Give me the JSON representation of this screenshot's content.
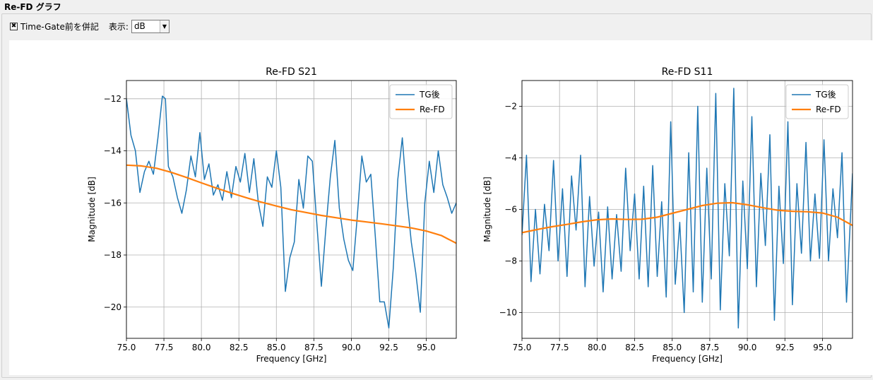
{
  "group": {
    "title": "Re-FD グラフ"
  },
  "toolbar": {
    "checkbox_checked": true,
    "checkbox_label": "Time-Gate前を併記",
    "display_label": "表示:",
    "display_value": "dB"
  },
  "colors": {
    "series_tg": "#1f77b4",
    "series_refd": "#ff7f0e",
    "grid": "#b0b0b0"
  },
  "chart_data": [
    {
      "type": "line",
      "title": "Re-FD S21",
      "xlabel": "Frequency [GHz]",
      "ylabel": "Magnitude [dB]",
      "xlim": [
        75.0,
        97.0
      ],
      "ylim": [
        -21.2,
        -11.3
      ],
      "xticks": [
        "75.0",
        "77.5",
        "80.0",
        "82.5",
        "85.0",
        "87.5",
        "90.0",
        "92.5",
        "95.0"
      ],
      "xtick_values": [
        75.0,
        77.5,
        80.0,
        82.5,
        85.0,
        87.5,
        90.0,
        92.5,
        95.0
      ],
      "yticks": [
        "−12",
        "−14",
        "−16",
        "−18",
        "−20"
      ],
      "ytick_values": [
        -12,
        -14,
        -16,
        -18,
        -20
      ],
      "grid": true,
      "legend": "top-right",
      "series": [
        {
          "name": "TG後",
          "x": [
            75.0,
            75.3,
            75.6,
            75.9,
            76.2,
            76.5,
            76.8,
            77.1,
            77.4,
            77.6,
            77.8,
            78.1,
            78.4,
            78.7,
            79.0,
            79.3,
            79.6,
            79.9,
            80.2,
            80.5,
            80.8,
            81.1,
            81.4,
            81.7,
            82.0,
            82.3,
            82.6,
            82.9,
            83.2,
            83.5,
            83.8,
            84.1,
            84.4,
            84.7,
            85.0,
            85.3,
            85.6,
            85.9,
            86.2,
            86.5,
            86.8,
            87.1,
            87.4,
            87.7,
            88.0,
            88.3,
            88.6,
            88.9,
            89.2,
            89.5,
            89.8,
            90.1,
            90.4,
            90.7,
            91.0,
            91.3,
            91.6,
            91.9,
            92.2,
            92.5,
            92.8,
            93.1,
            93.4,
            93.7,
            94.0,
            94.3,
            94.6,
            94.9,
            95.2,
            95.5,
            95.8,
            96.1,
            96.4,
            96.7,
            97.0
          ],
          "y": [
            -12.0,
            -13.4,
            -14.0,
            -15.6,
            -14.8,
            -14.4,
            -14.9,
            -13.5,
            -11.9,
            -12.0,
            -14.6,
            -15.0,
            -15.8,
            -16.4,
            -15.5,
            -14.2,
            -15.0,
            -13.3,
            -15.1,
            -14.5,
            -15.7,
            -15.3,
            -15.9,
            -14.8,
            -15.8,
            -14.6,
            -15.2,
            -14.1,
            -15.6,
            -14.3,
            -16.0,
            -16.9,
            -15.0,
            -15.4,
            -14.0,
            -15.4,
            -19.4,
            -18.1,
            -17.5,
            -15.1,
            -16.2,
            -14.2,
            -14.4,
            -16.8,
            -19.2,
            -17.0,
            -15.0,
            -13.6,
            -16.2,
            -17.4,
            -18.2,
            -18.6,
            -16.5,
            -14.2,
            -15.2,
            -14.9,
            -17.3,
            -19.8,
            -19.8,
            -20.8,
            -18.5,
            -15.1,
            -13.5,
            -15.8,
            -17.5,
            -18.7,
            -20.2,
            -16.0,
            -14.4,
            -15.6,
            -14.0,
            -15.3,
            -15.8,
            -16.4,
            -16.0
          ]
        },
        {
          "name": "Re-FD",
          "x": [
            75.0,
            76.0,
            77.0,
            78.0,
            79.0,
            80.0,
            81.0,
            82.0,
            83.0,
            84.0,
            85.0,
            86.0,
            87.0,
            88.0,
            89.0,
            90.0,
            91.0,
            92.0,
            93.0,
            94.0,
            95.0,
            96.0,
            97.0
          ],
          "y": [
            -14.55,
            -14.58,
            -14.67,
            -14.83,
            -15.02,
            -15.23,
            -15.43,
            -15.62,
            -15.8,
            -15.97,
            -16.12,
            -16.26,
            -16.37,
            -16.48,
            -16.57,
            -16.66,
            -16.73,
            -16.8,
            -16.88,
            -16.96,
            -17.08,
            -17.25,
            -17.55
          ]
        }
      ]
    },
    {
      "type": "line",
      "title": "Re-FD S11",
      "xlabel": "Frequency [GHz]",
      "ylabel": "Magnitude [dB]",
      "xlim": [
        75.0,
        97.0
      ],
      "ylim": [
        -11.0,
        -1.0
      ],
      "xticks": [
        "75.0",
        "77.5",
        "80.0",
        "82.5",
        "85.0",
        "87.5",
        "90.0",
        "92.5",
        "95.0"
      ],
      "xtick_values": [
        75.0,
        77.5,
        80.0,
        82.5,
        85.0,
        87.5,
        90.0,
        92.5,
        95.0
      ],
      "yticks": [
        "−2",
        "−4",
        "−6",
        "−8",
        "−10"
      ],
      "ytick_values": [
        -2,
        -4,
        -6,
        -8,
        -10
      ],
      "grid": true,
      "legend": "top-right",
      "series": [
        {
          "name": "TG後",
          "x": [
            75.0,
            75.3,
            75.6,
            75.9,
            76.2,
            76.5,
            76.8,
            77.1,
            77.4,
            77.7,
            78.0,
            78.3,
            78.6,
            78.9,
            79.2,
            79.5,
            79.8,
            80.1,
            80.4,
            80.7,
            81.0,
            81.3,
            81.6,
            81.9,
            82.2,
            82.5,
            82.8,
            83.1,
            83.4,
            83.7,
            84.0,
            84.3,
            84.6,
            84.9,
            85.2,
            85.5,
            85.8,
            86.1,
            86.4,
            86.7,
            87.0,
            87.3,
            87.6,
            87.9,
            88.2,
            88.5,
            88.8,
            89.1,
            89.4,
            89.7,
            90.0,
            90.3,
            90.6,
            90.9,
            91.2,
            91.5,
            91.8,
            92.1,
            92.4,
            92.7,
            93.0,
            93.3,
            93.6,
            93.9,
            94.2,
            94.5,
            94.8,
            95.1,
            95.4,
            95.7,
            96.0,
            96.3,
            96.6,
            97.0
          ],
          "y": [
            -7.0,
            -3.9,
            -8.8,
            -6.0,
            -8.5,
            -5.8,
            -7.6,
            -4.1,
            -8.0,
            -5.2,
            -8.6,
            -4.7,
            -6.8,
            -3.9,
            -9.0,
            -5.5,
            -8.2,
            -6.1,
            -9.2,
            -5.9,
            -8.7,
            -6.2,
            -8.4,
            -4.4,
            -7.6,
            -5.4,
            -8.7,
            -5.1,
            -9.0,
            -4.3,
            -8.6,
            -5.7,
            -9.4,
            -2.6,
            -8.9,
            -6.5,
            -10.0,
            -3.8,
            -9.2,
            -2.0,
            -9.6,
            -4.4,
            -8.7,
            -1.5,
            -9.9,
            -5.0,
            -7.8,
            -1.3,
            -10.6,
            -4.9,
            -8.3,
            -2.4,
            -9.0,
            -4.6,
            -7.4,
            -3.1,
            -10.3,
            -5.1,
            -8.1,
            -2.6,
            -9.7,
            -5.0,
            -7.7,
            -3.4,
            -8.0,
            -5.4,
            -7.9,
            -3.3,
            -8.0,
            -5.2,
            -7.1,
            -3.8,
            -9.6,
            -4.6
          ]
        },
        {
          "name": "Re-FD",
          "x": [
            75.0,
            76.0,
            77.0,
            78.0,
            79.0,
            80.0,
            81.0,
            82.0,
            83.0,
            84.0,
            85.0,
            86.0,
            87.0,
            88.0,
            89.0,
            90.0,
            91.0,
            92.0,
            93.0,
            94.0,
            95.0,
            96.0,
            97.0
          ],
          "y": [
            -6.9,
            -6.78,
            -6.67,
            -6.58,
            -6.48,
            -6.4,
            -6.37,
            -6.39,
            -6.38,
            -6.3,
            -6.15,
            -6.0,
            -5.85,
            -5.76,
            -5.74,
            -5.82,
            -5.93,
            -6.03,
            -6.07,
            -6.09,
            -6.14,
            -6.3,
            -6.62
          ]
        }
      ]
    }
  ]
}
